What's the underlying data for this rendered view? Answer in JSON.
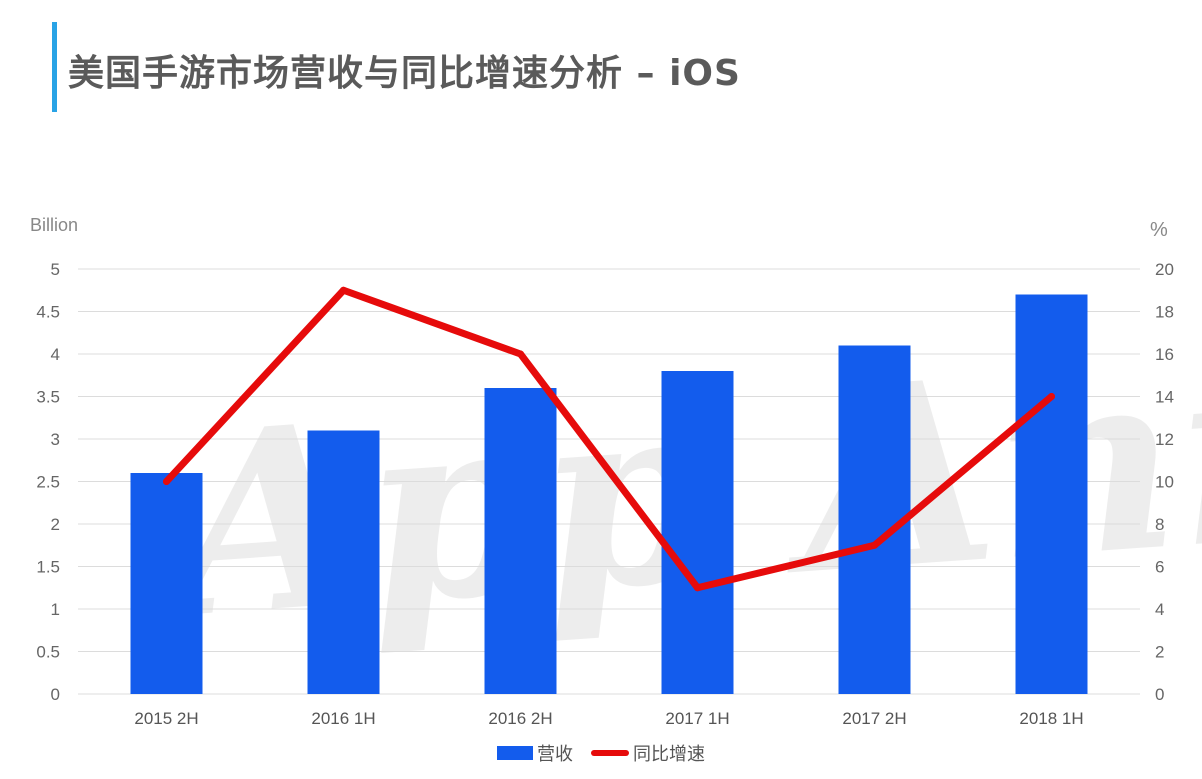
{
  "header": {
    "title": "美国手游市场营收与同比增速分析 – iOS",
    "accent_color": "#29a3e6"
  },
  "watermark": {
    "text": "App Annie",
    "kind": "logo"
  },
  "chart_data": {
    "type": "bar",
    "categories": [
      "2015 2H",
      "2016 1H",
      "2016 2H",
      "2017 1H",
      "2017 2H",
      "2018 1H"
    ],
    "series": [
      {
        "name": "营收",
        "type": "bar",
        "axis": "left",
        "color": "#135ced",
        "values": [
          2.6,
          3.1,
          3.6,
          3.8,
          4.1,
          4.7
        ]
      },
      {
        "name": "同比增速",
        "type": "line",
        "axis": "right",
        "color": "#e60b0b",
        "values": [
          10,
          19,
          16,
          5,
          7,
          14
        ]
      }
    ],
    "y_left": {
      "label": "Billion",
      "min": 0,
      "max": 5,
      "ticks": [
        "0",
        "0.5",
        "1",
        "1.5",
        "2",
        "2.5",
        "3",
        "3.5",
        "4",
        "4.5",
        "5"
      ]
    },
    "y_right": {
      "label": "%",
      "min": 0,
      "max": 20,
      "ticks": [
        "0",
        "2",
        "4",
        "6",
        "8",
        "10",
        "12",
        "14",
        "16",
        "18",
        "20"
      ]
    },
    "grid": true,
    "legend_position": "bottom"
  }
}
